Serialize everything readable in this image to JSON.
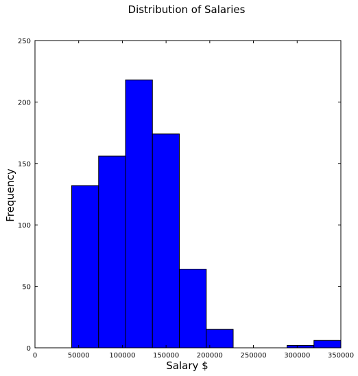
{
  "chart_data": {
    "type": "bar",
    "title": "Distribution of Salaries",
    "xlabel": "Salary $",
    "ylabel": "Frequency",
    "xlim": [
      0,
      350000
    ],
    "ylim": [
      0,
      250
    ],
    "grid": false,
    "bar_color": "#0000ff",
    "edge_color": "#000000",
    "x_ticks": [
      0,
      50000,
      100000,
      150000,
      200000,
      250000,
      300000,
      350000
    ],
    "y_ticks": [
      0,
      50,
      100,
      150,
      200,
      250
    ],
    "bins": [
      {
        "x0": 42000,
        "x1": 72800,
        "count": 132
      },
      {
        "x0": 72800,
        "x1": 103600,
        "count": 156
      },
      {
        "x0": 103600,
        "x1": 134400,
        "count": 218
      },
      {
        "x0": 134400,
        "x1": 165200,
        "count": 174
      },
      {
        "x0": 165200,
        "x1": 196000,
        "count": 64
      },
      {
        "x0": 196000,
        "x1": 226800,
        "count": 15
      },
      {
        "x0": 226800,
        "x1": 257600,
        "count": 0
      },
      {
        "x0": 257600,
        "x1": 288400,
        "count": 0
      },
      {
        "x0": 288400,
        "x1": 319200,
        "count": 2
      },
      {
        "x0": 319200,
        "x1": 350000,
        "count": 6
      }
    ]
  }
}
